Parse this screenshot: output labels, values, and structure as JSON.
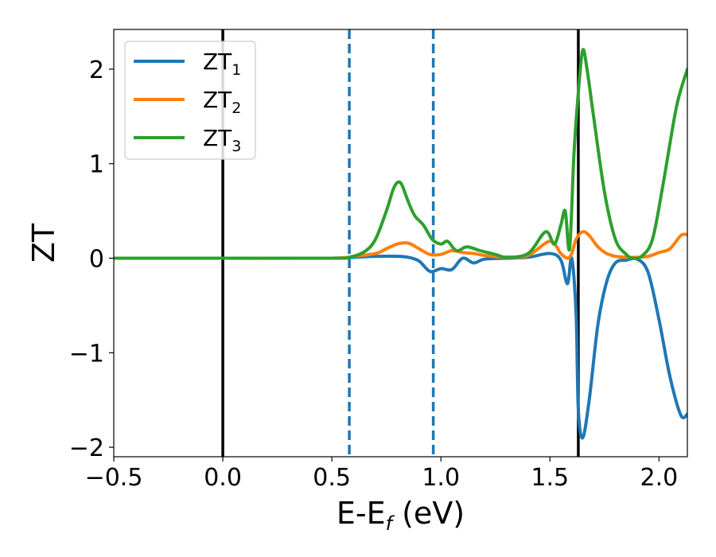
{
  "chart_data": {
    "type": "line",
    "xlabel_main": "E-E",
    "xlabel_sub": "f",
    "xlabel_unit": " (eV)",
    "ylabel": "ZT",
    "xlim": [
      -0.5,
      2.13
    ],
    "ylim": [
      -2.1,
      2.42
    ],
    "xticks": [
      -0.5,
      0.0,
      0.5,
      1.0,
      1.5,
      2.0
    ],
    "xtick_labels": [
      "−0.5",
      "0.0",
      "0.5",
      "1.0",
      "1.5",
      "2.0"
    ],
    "yticks": [
      -2,
      -1,
      0,
      1,
      2
    ],
    "ytick_labels": [
      "−2",
      "−1",
      "0",
      "1",
      "2"
    ],
    "grid": false,
    "legend_position": "top-left",
    "vlines": [
      {
        "x": 0.0,
        "color": "#000000",
        "style": "solid"
      },
      {
        "x": 0.58,
        "color": "#1f77b4",
        "style": "dashed"
      },
      {
        "x": 0.965,
        "color": "#1f77b4",
        "style": "dashed"
      },
      {
        "x": 1.63,
        "color": "#000000",
        "style": "solid"
      }
    ],
    "series": [
      {
        "name": "ZT",
        "subscript": "1",
        "color": "#1f77b4",
        "x": [
          -0.5,
          0.0,
          0.5,
          0.6,
          0.7,
          0.8,
          0.85,
          0.9,
          0.95,
          1.0,
          1.05,
          1.1,
          1.15,
          1.2,
          1.3,
          1.4,
          1.5,
          1.55,
          1.58,
          1.6,
          1.62,
          1.63,
          1.65,
          1.68,
          1.72,
          1.76,
          1.8,
          1.85,
          1.9,
          1.95,
          2.0,
          2.05,
          2.1,
          2.13
        ],
        "y": [
          0,
          0,
          0,
          0.01,
          0.02,
          0.02,
          0.01,
          -0.03,
          -0.14,
          -0.11,
          -0.12,
          0.0,
          -0.05,
          -0.01,
          0.0,
          0.01,
          0.05,
          -0.02,
          -0.27,
          0.0,
          -0.6,
          -1.6,
          -1.9,
          -1.5,
          -0.7,
          -0.25,
          -0.05,
          -0.02,
          -0.01,
          -0.15,
          -0.65,
          -1.25,
          -1.66,
          -1.65
        ]
      },
      {
        "name": "ZT",
        "subscript": "2",
        "color": "#ff7f0e",
        "x": [
          -0.5,
          0.0,
          0.5,
          0.6,
          0.7,
          0.75,
          0.8,
          0.85,
          0.9,
          0.95,
          1.0,
          1.05,
          1.1,
          1.15,
          1.2,
          1.3,
          1.4,
          1.5,
          1.55,
          1.58,
          1.6,
          1.62,
          1.65,
          1.68,
          1.72,
          1.76,
          1.8,
          1.85,
          1.9,
          1.95,
          2.0,
          2.05,
          2.1,
          2.13
        ],
        "y": [
          0,
          0,
          0,
          0.02,
          0.05,
          0.1,
          0.15,
          0.16,
          0.1,
          0.04,
          0.04,
          0.08,
          0.06,
          0.05,
          0.03,
          0.01,
          0.03,
          0.18,
          0.05,
          0.0,
          0.05,
          0.2,
          0.28,
          0.24,
          0.12,
          0.05,
          0.02,
          0.01,
          0.01,
          0.02,
          0.06,
          0.1,
          0.24,
          0.25
        ]
      },
      {
        "name": "ZT",
        "subscript": "3",
        "color": "#2ca02c",
        "x": [
          -0.5,
          0.0,
          0.5,
          0.58,
          0.65,
          0.7,
          0.75,
          0.78,
          0.8,
          0.82,
          0.85,
          0.88,
          0.92,
          0.96,
          1.0,
          1.03,
          1.06,
          1.08,
          1.12,
          1.18,
          1.25,
          1.3,
          1.4,
          1.48,
          1.52,
          1.55,
          1.57,
          1.59,
          1.61,
          1.63,
          1.65,
          1.67,
          1.7,
          1.75,
          1.8,
          1.85,
          1.88,
          1.92,
          1.97,
          2.02,
          2.08,
          2.13
        ],
        "y": [
          0,
          0,
          0,
          0.01,
          0.07,
          0.2,
          0.5,
          0.72,
          0.8,
          0.78,
          0.6,
          0.45,
          0.35,
          0.2,
          0.15,
          0.18,
          0.1,
          0.08,
          0.12,
          0.08,
          0.04,
          0.01,
          0.05,
          0.28,
          0.15,
          0.35,
          0.5,
          0.1,
          1.1,
          1.75,
          2.2,
          2.0,
          1.5,
          0.7,
          0.2,
          0.04,
          0.0,
          0.02,
          0.2,
          0.8,
          1.6,
          2.0
        ]
      }
    ]
  }
}
